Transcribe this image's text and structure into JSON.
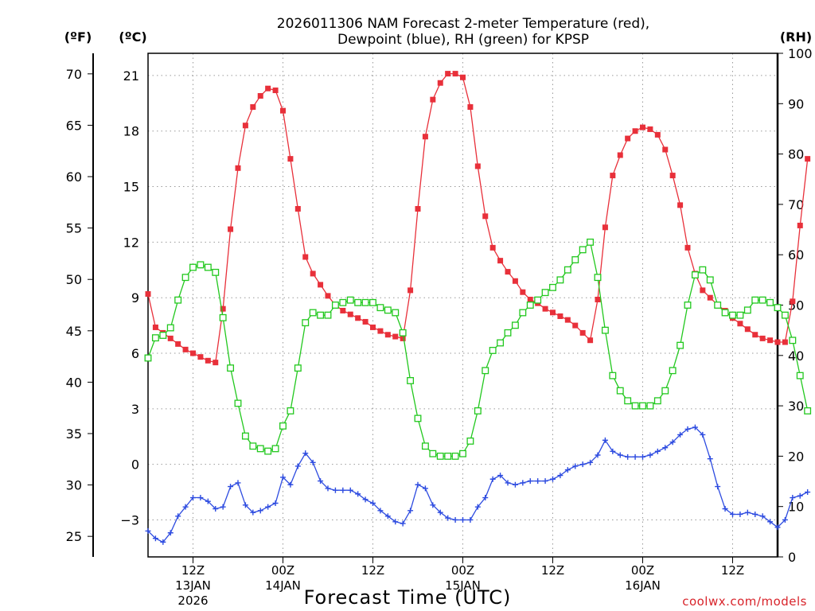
{
  "chart_data": {
    "type": "line",
    "title_line1": "2026011306 NAM Forecast 2-meter Temperature (red),",
    "title_line2": "Dewpoint (blue), RH (green) for KPSP",
    "unit_f": "(ºF)",
    "unit_c": "(ºC)",
    "unit_rh": "(RH)",
    "xlabel": "Forecast Time (UTC)",
    "credit": "coolwx.com/models",
    "x_unit": "forecast hour",
    "xlim": [
      0,
      84
    ],
    "c_ylim": [
      -5,
      22.2
    ],
    "f_ylim": [
      23,
      72
    ],
    "rh_ylim": [
      0,
      100
    ],
    "f_ticks": [
      25,
      30,
      35,
      40,
      45,
      50,
      55,
      60,
      65,
      70
    ],
    "c_ticks": [
      -3,
      0,
      3,
      6,
      9,
      12,
      15,
      18,
      21
    ],
    "c_tick_labels": [
      "−3",
      "0",
      "3",
      "6",
      "9",
      "12",
      "15",
      "18",
      "21"
    ],
    "rh_ticks": [
      0,
      10,
      20,
      30,
      40,
      50,
      60,
      70,
      80,
      90,
      100
    ],
    "x_ticks": [
      {
        "hour": 6,
        "line1": "12Z",
        "line2": "13JAN",
        "line3": "2026"
      },
      {
        "hour": 18,
        "line1": "00Z",
        "line2": "14JAN",
        "line3": ""
      },
      {
        "hour": 30,
        "line1": "12Z",
        "line2": "",
        "line3": ""
      },
      {
        "hour": 42,
        "line1": "00Z",
        "line2": "15JAN",
        "line3": ""
      },
      {
        "hour": 54,
        "line1": "12Z",
        "line2": "",
        "line3": ""
      },
      {
        "hour": 66,
        "line1": "00Z",
        "line2": "16JAN",
        "line3": ""
      },
      {
        "hour": 78,
        "line1": "12Z",
        "line2": "",
        "line3": ""
      }
    ],
    "series": [
      {
        "name": "2-meter Temperature",
        "color": "#e8303a",
        "axis": "celsius",
        "marker": "filled-square",
        "values": [
          9.2,
          7.4,
          7.1,
          6.8,
          6.5,
          6.2,
          6.0,
          5.8,
          5.6,
          5.5,
          8.4,
          12.7,
          16.0,
          18.3,
          19.3,
          19.9,
          20.3,
          20.2,
          19.1,
          16.5,
          13.8,
          11.2,
          10.3,
          9.7,
          9.1,
          8.6,
          8.3,
          8.1,
          7.9,
          7.7,
          7.4,
          7.2,
          7.0,
          6.9,
          6.8,
          9.4,
          13.8,
          17.7,
          19.7,
          20.6,
          21.1,
          21.1,
          20.9,
          19.3,
          16.1,
          13.4,
          11.7,
          11.0,
          10.4,
          9.9,
          9.3,
          8.9,
          8.7,
          8.4,
          8.2,
          8.0,
          7.8,
          7.5,
          7.1,
          6.7,
          8.9,
          12.8,
          15.6,
          16.7,
          17.6,
          18.0,
          18.2,
          18.1,
          17.8,
          17.0,
          15.6,
          14.0,
          11.7,
          10.3,
          9.4,
          9.0,
          8.6,
          8.3,
          7.9,
          7.6,
          7.3,
          7.0,
          6.8,
          6.7,
          6.6,
          6.6,
          8.8,
          12.9,
          16.5
        ]
      },
      {
        "name": "Dewpoint",
        "color": "#2d4be0",
        "axis": "celsius",
        "marker": "plus",
        "values": [
          -3.6,
          -4.0,
          -4.2,
          -3.7,
          -2.8,
          -2.3,
          -1.8,
          -1.8,
          -2.0,
          -2.4,
          -2.3,
          -1.2,
          -1.0,
          -2.2,
          -2.6,
          -2.5,
          -2.3,
          -2.1,
          -0.7,
          -1.1,
          -0.1,
          0.6,
          0.1,
          -0.9,
          -1.3,
          -1.4,
          -1.4,
          -1.4,
          -1.6,
          -1.9,
          -2.1,
          -2.5,
          -2.8,
          -3.1,
          -3.2,
          -2.5,
          -1.1,
          -1.3,
          -2.2,
          -2.6,
          -2.9,
          -3.0,
          -3.0,
          -3.0,
          -2.3,
          -1.8,
          -0.8,
          -0.6,
          -1.0,
          -1.1,
          -1.0,
          -0.9,
          -0.9,
          -0.9,
          -0.8,
          -0.6,
          -0.3,
          -0.1,
          0.0,
          0.1,
          0.5,
          1.3,
          0.7,
          0.5,
          0.4,
          0.4,
          0.4,
          0.5,
          0.7,
          0.9,
          1.2,
          1.6,
          1.9,
          2.0,
          1.6,
          0.3,
          -1.2,
          -2.4,
          -2.7,
          -2.7,
          -2.6,
          -2.7,
          -2.8,
          -3.1,
          -3.4,
          -3.0,
          -1.8,
          -1.7,
          -1.5
        ]
      },
      {
        "name": "RH",
        "color": "#22c81e",
        "axis": "rh",
        "marker": "open-square",
        "values": [
          39.5,
          43.5,
          44,
          45.5,
          51,
          55.5,
          57.5,
          58,
          57.5,
          56.5,
          47.5,
          37.5,
          30.5,
          24,
          22,
          21.5,
          21,
          21.5,
          26,
          29,
          37.5,
          46.5,
          48.5,
          48,
          48,
          50,
          50.5,
          51,
          50.5,
          50.5,
          50.5,
          49.5,
          49,
          48.5,
          44.5,
          35,
          27.5,
          22,
          20.5,
          20,
          20,
          20,
          20.5,
          23,
          29,
          37,
          41,
          42.5,
          44.5,
          46,
          48.5,
          50,
          51,
          52.5,
          53.5,
          55,
          57,
          59,
          61,
          62.5,
          55.5,
          45,
          36,
          33,
          31,
          30,
          30,
          30,
          31,
          33,
          37,
          42,
          50,
          56,
          57,
          55,
          50,
          48.5,
          48,
          48,
          49,
          51,
          51,
          50.5,
          49.5,
          48,
          43,
          36,
          29
        ]
      }
    ]
  }
}
